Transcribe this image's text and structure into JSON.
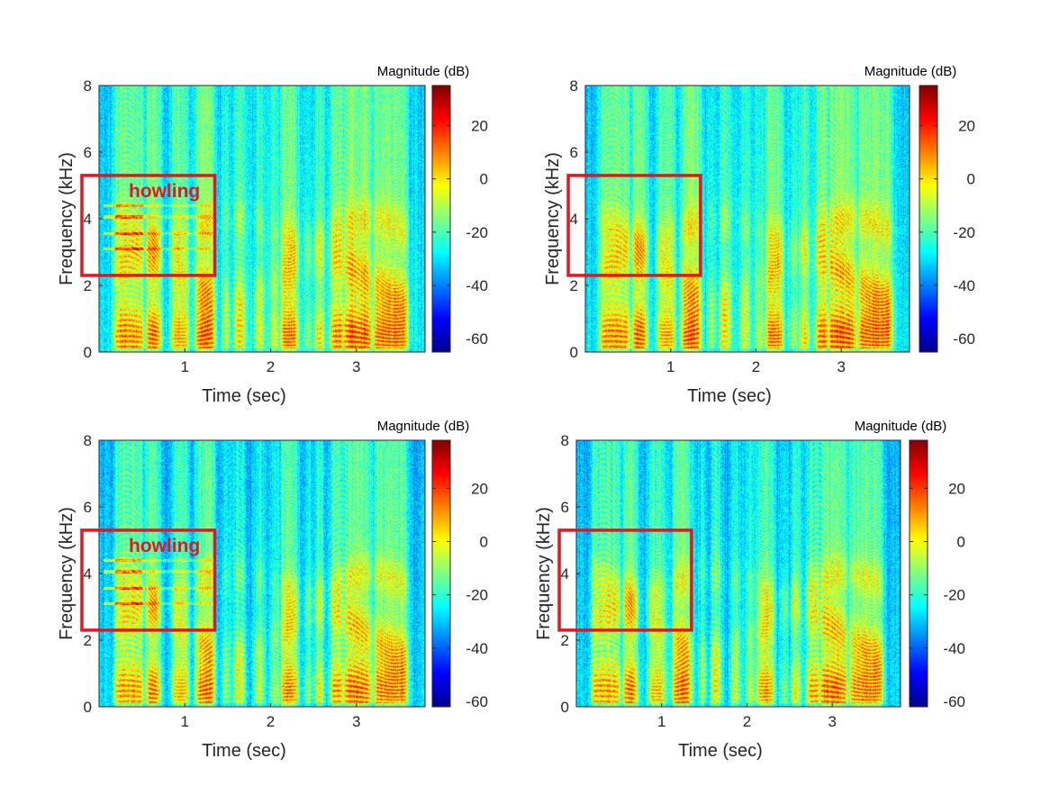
{
  "figure": {
    "panels": [
      {
        "id": "top-left",
        "xlabel": "Time (sec)",
        "ylabel": "Frequency (kHz)",
        "colorbar_label": "Magnitude (dB)",
        "annotation": "howling",
        "has_annotation_text": true
      },
      {
        "id": "top-right",
        "xlabel": "Time (sec)",
        "ylabel": "Frequency (kHz)",
        "colorbar_label": "Magnitude (dB)",
        "annotation": "",
        "has_annotation_text": false
      },
      {
        "id": "bottom-left",
        "xlabel": "Time (sec)",
        "ylabel": "Frequency (kHz)",
        "colorbar_label": "Magnitude (dB)",
        "annotation": "howling",
        "has_annotation_text": true
      },
      {
        "id": "bottom-right",
        "xlabel": "Time (sec)",
        "ylabel": "Frequency (kHz)",
        "colorbar_label": "Magnitude (dB)",
        "annotation": "",
        "has_annotation_text": false
      }
    ],
    "colors": {
      "highlight_box": "#e8141e",
      "annotation_text": "#e8141e",
      "axis": "#262626"
    }
  },
  "chart_data": [
    {
      "type": "heatmap",
      "xlabel": "Time (sec)",
      "ylabel": "Frequency (kHz)",
      "x_ticks": [
        1,
        2,
        3
      ],
      "y_ticks": [
        0,
        2,
        4,
        6,
        8
      ],
      "xlim": [
        0,
        3.8
      ],
      "ylim": [
        0,
        8
      ],
      "colorbar": {
        "label": "Magnitude (dB)",
        "ticks": [
          20,
          0,
          -20,
          -40,
          -60
        ],
        "range": [
          -65,
          35
        ],
        "colormap": "jet"
      },
      "annotation": {
        "text": "howling",
        "time_range": [
          -0.2,
          1.35
        ],
        "freq_range": [
          2.3,
          5.3
        ]
      }
    },
    {
      "type": "heatmap",
      "xlabel": "Time (sec)",
      "ylabel": "Frequency (kHz)",
      "x_ticks": [
        1,
        2,
        3
      ],
      "y_ticks": [
        0,
        2,
        4,
        6,
        8
      ],
      "xlim": [
        0,
        3.8
      ],
      "ylim": [
        0,
        8
      ],
      "colorbar": {
        "label": "Magnitude (dB)",
        "ticks": [
          20,
          0,
          -20,
          -40,
          -60
        ],
        "range": [
          -65,
          35
        ],
        "colormap": "jet"
      },
      "annotation": {
        "text": "",
        "time_range": [
          -0.2,
          1.35
        ],
        "freq_range": [
          2.3,
          5.3
        ]
      }
    },
    {
      "type": "heatmap",
      "xlabel": "Time (sec)",
      "ylabel": "Frequency (kHz)",
      "x_ticks": [
        1,
        2,
        3
      ],
      "y_ticks": [
        0,
        2,
        4,
        6,
        8
      ],
      "xlim": [
        0,
        3.8
      ],
      "ylim": [
        0,
        8
      ],
      "colorbar": {
        "label": "Magnitude (dB)",
        "ticks": [
          20,
          0,
          -20,
          -40,
          -60
        ],
        "range": [
          -62,
          38
        ],
        "colormap": "jet"
      },
      "annotation": {
        "text": "howling",
        "time_range": [
          -0.2,
          1.35
        ],
        "freq_range": [
          2.3,
          5.3
        ]
      }
    },
    {
      "type": "heatmap",
      "xlabel": "Time (sec)",
      "ylabel": "Frequency (kHz)",
      "x_ticks": [
        1,
        2,
        3
      ],
      "y_ticks": [
        0,
        2,
        4,
        6,
        8
      ],
      "xlim": [
        0,
        3.8
      ],
      "ylim": [
        0,
        8
      ],
      "colorbar": {
        "label": "Magnitude (dB)",
        "ticks": [
          20,
          0,
          -20,
          -40,
          -60
        ],
        "range": [
          -62,
          38
        ],
        "colormap": "jet"
      },
      "annotation": {
        "text": "",
        "time_range": [
          -0.2,
          1.35
        ],
        "freq_range": [
          2.3,
          5.3
        ]
      }
    }
  ]
}
